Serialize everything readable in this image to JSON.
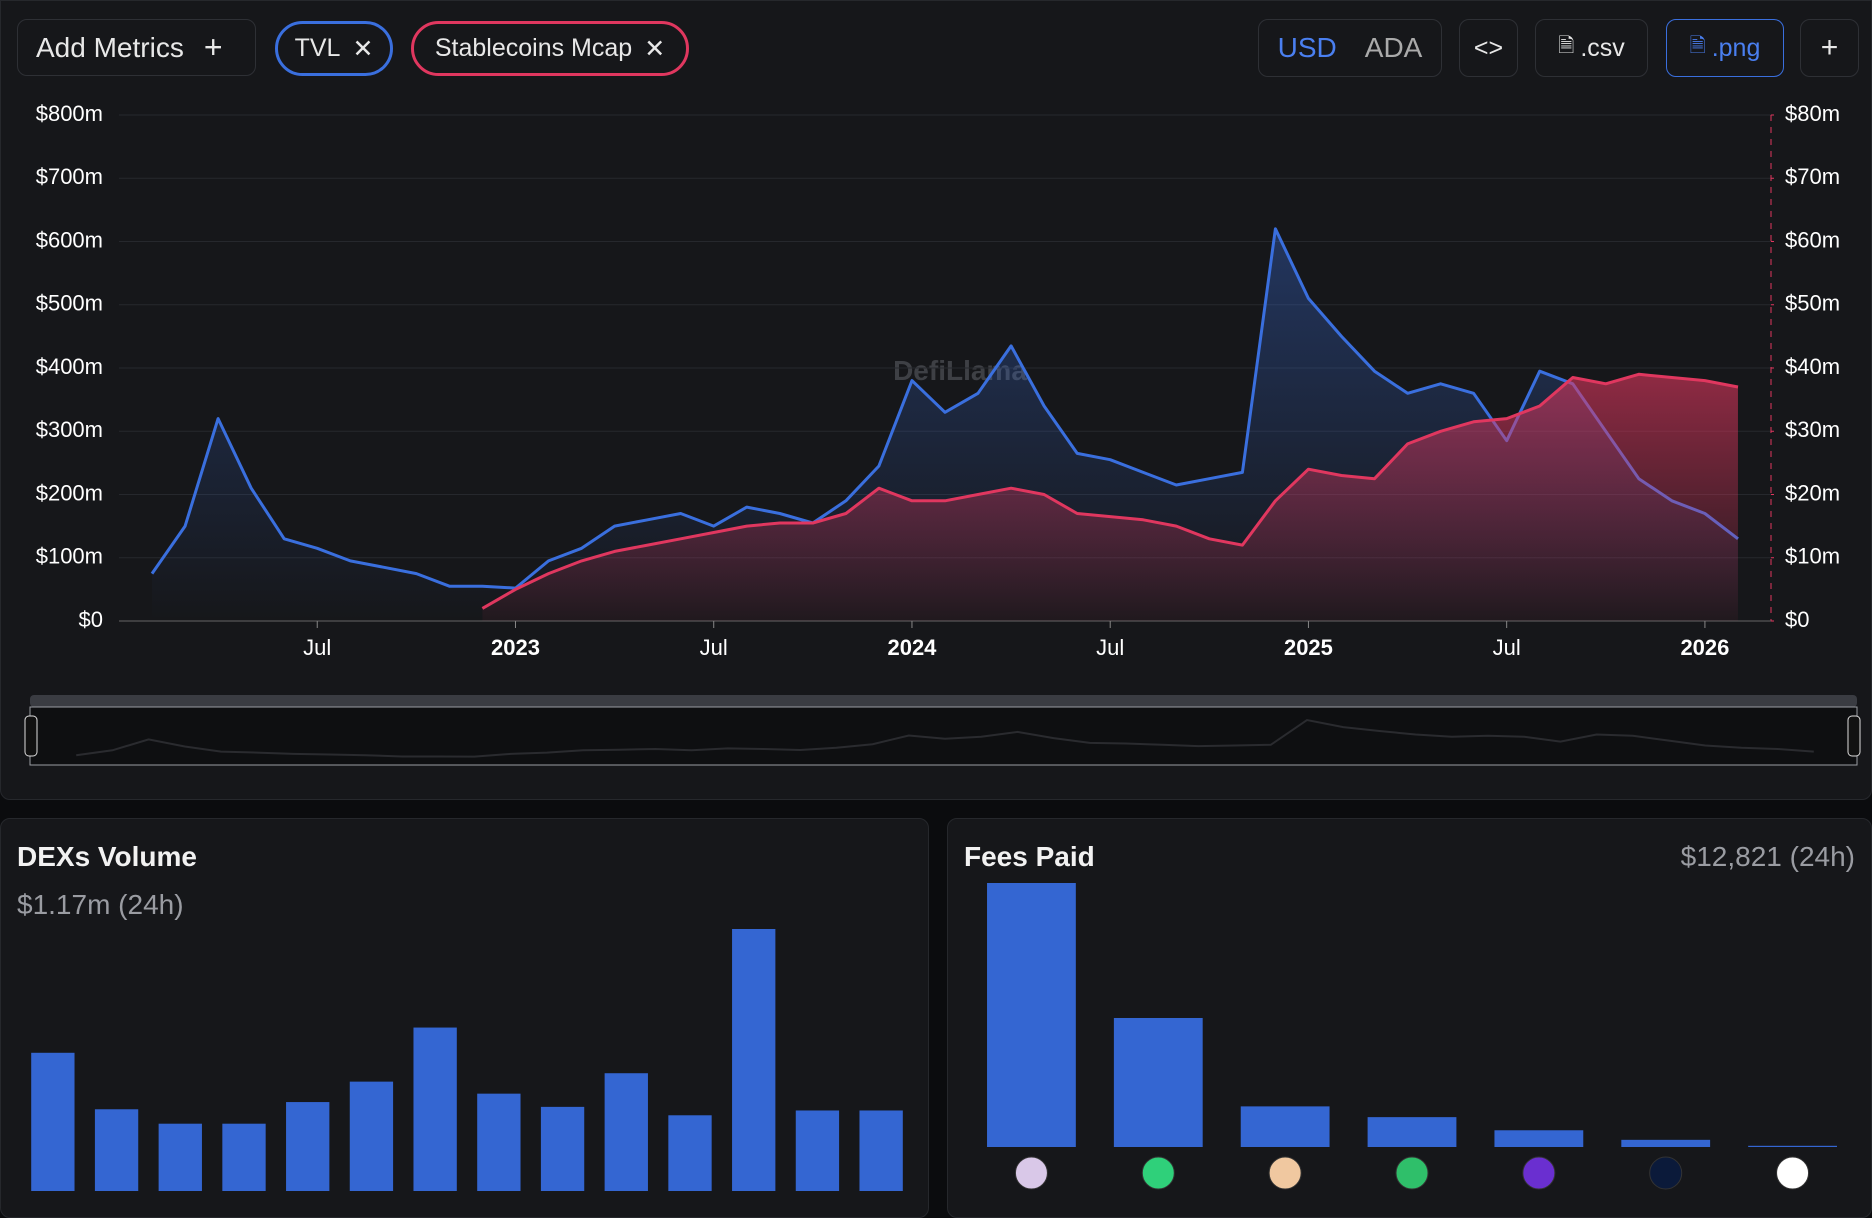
{
  "header": {
    "add_metrics": "Add Metrics",
    "metrics": [
      "TVL",
      "Stablecoins Mcap"
    ],
    "currencies": [
      "USD",
      "ADA"
    ],
    "csv": ".csv",
    "png": ".png"
  },
  "watermark": "DefiLlama",
  "chart_data": [
    {
      "type": "line",
      "x": [
        "2022-02",
        "2022-03",
        "2022-04",
        "2022-05",
        "2022-06",
        "2022-07",
        "2022-08",
        "2022-09",
        "2022-10",
        "2022-11",
        "2022-12",
        "2023-01",
        "2023-02",
        "2023-03",
        "2023-04",
        "2023-05",
        "2023-06",
        "2023-07",
        "2023-08",
        "2023-09",
        "2023-10",
        "2023-11",
        "2023-12",
        "2024-01",
        "2024-02",
        "2024-03",
        "2024-04",
        "2024-05",
        "2024-06",
        "2024-07",
        "2024-08",
        "2024-09",
        "2024-10",
        "2024-11",
        "2024-12",
        "2025-01",
        "2025-02",
        "2025-03",
        "2025-04",
        "2025-05",
        "2025-06",
        "2025-07",
        "2025-08",
        "2025-09",
        "2025-10",
        "2025-11",
        "2025-12",
        "2026-01",
        "2026-02"
      ],
      "series": [
        {
          "name": "TVL",
          "color": "#3a6fde",
          "values": [
            75,
            150,
            320,
            210,
            130,
            115,
            95,
            85,
            75,
            55,
            55,
            52,
            95,
            115,
            150,
            160,
            170,
            150,
            180,
            170,
            155,
            190,
            245,
            380,
            330,
            360,
            435,
            340,
            265,
            255,
            235,
            215,
            225,
            235,
            620,
            510,
            450,
            395,
            360,
            375,
            360,
            285,
            395,
            375,
            300,
            225,
            190,
            170,
            130
          ]
        },
        {
          "name": "Stablecoins Mcap",
          "color": "#e0375f",
          "axis": "y2",
          "values": [
            null,
            null,
            null,
            null,
            null,
            null,
            null,
            null,
            null,
            null,
            2,
            5,
            7.5,
            9.5,
            11,
            12,
            13,
            14,
            15,
            15.5,
            15.5,
            17,
            21,
            19,
            19,
            20,
            21,
            20,
            17,
            16.5,
            16,
            15,
            13,
            12,
            19,
            24,
            23,
            22.5,
            28,
            30,
            31.5,
            32,
            34,
            38.5,
            37.5,
            39,
            38.5,
            38,
            37
          ]
        }
      ],
      "xlim": [
        "2022-01",
        "2026-03"
      ],
      "xticks": [
        {
          "value": "2022-07",
          "label": "Jul"
        },
        "2023",
        {
          "value": "2023-07",
          "label": "Jul"
        },
        "2024",
        {
          "value": "2024-07",
          "label": "Jul"
        },
        "2025",
        {
          "value": "2025-07",
          "label": "Jul"
        },
        "2026"
      ],
      "ylim": [
        0,
        800
      ],
      "yticks": [
        {
          "value": 0,
          "label": "$0"
        },
        {
          "value": 100,
          "label": "$100m"
        },
        {
          "value": 200,
          "label": "$200m"
        },
        {
          "value": 300,
          "label": "$300m"
        },
        {
          "value": 400,
          "label": "$400m"
        },
        {
          "value": 500,
          "label": "$500m"
        },
        {
          "value": 600,
          "label": "$600m"
        },
        {
          "value": 700,
          "label": "$700m"
        },
        {
          "value": 800,
          "label": "$800m"
        }
      ],
      "y2lim": [
        0,
        80
      ],
      "y2ticks": [
        {
          "value": 0,
          "label": "$0"
        },
        {
          "value": 10,
          "label": "$10m"
        },
        {
          "value": 20,
          "label": "$20m"
        },
        {
          "value": 30,
          "label": "$30m"
        },
        {
          "value": 40,
          "label": "$40m"
        },
        {
          "value": 50,
          "label": "$50m"
        },
        {
          "value": 60,
          "label": "$60m"
        },
        {
          "value": 70,
          "label": "$70m"
        },
        {
          "value": 80,
          "label": "$80m"
        }
      ],
      "grid": true
    },
    {
      "type": "bar",
      "title": "DEXs Volume",
      "subtitle": "$1.17m (24h)",
      "color": "#3466d2",
      "values": [
        115,
        68,
        56,
        56,
        74,
        91,
        136,
        81,
        70,
        98,
        63,
        218,
        67,
        67
      ]
    },
    {
      "type": "bar",
      "title": "Fees Paid",
      "subtitle": "$12,821 (24h)",
      "color": "#3466d2",
      "values": [
        221,
        108,
        34,
        25,
        14,
        6,
        1
      ]
    }
  ]
}
